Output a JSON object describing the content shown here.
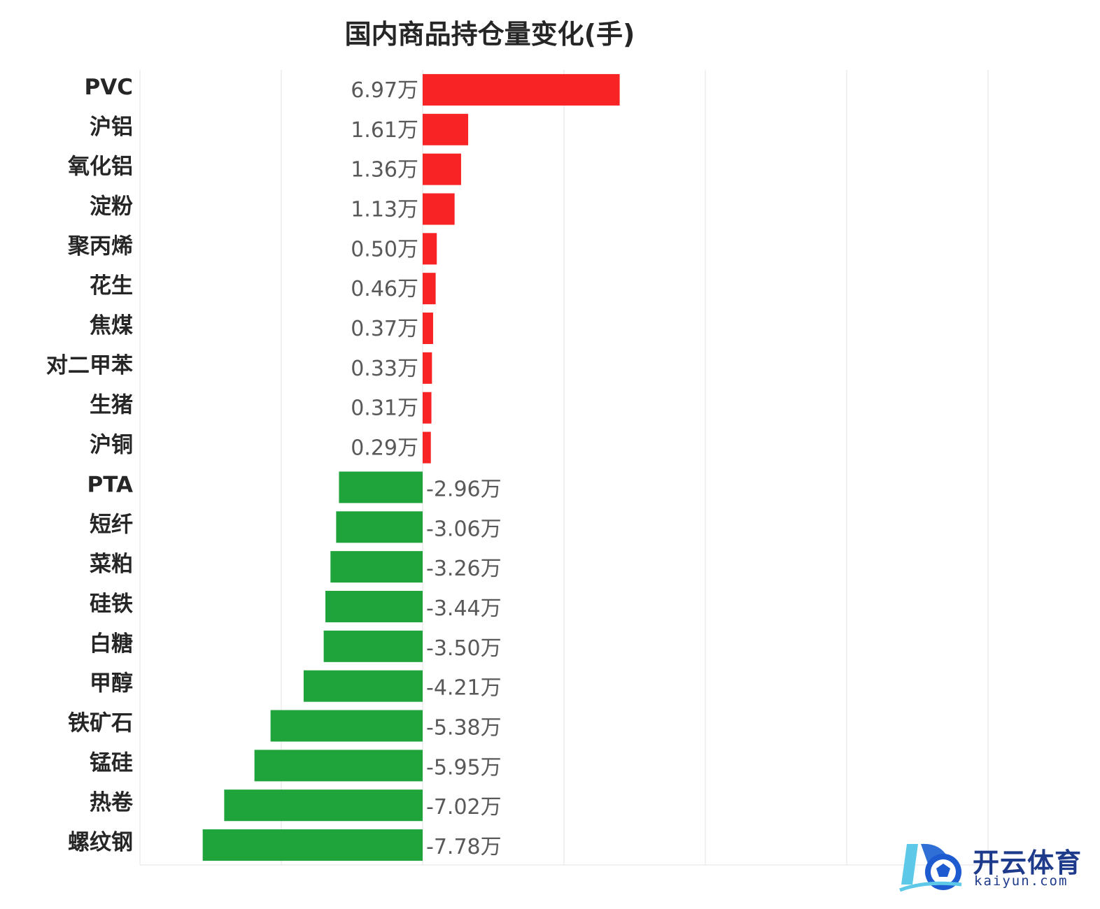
{
  "chart_data": {
    "type": "bar",
    "orientation": "horizontal",
    "title": "国内商品持仓量变化(手)",
    "xlabel": "",
    "ylabel": "",
    "unit": "万",
    "xlim": [
      -10,
      20
    ],
    "grid": true,
    "legend": "none",
    "colors": {
      "positive": "#f72325",
      "negative": "#1fa33b"
    },
    "categories": [
      "PVC",
      "沪铝",
      "氧化铝",
      "淀粉",
      "聚丙烯",
      "花生",
      "焦煤",
      "对二甲苯",
      "生猪",
      "沪铜",
      "PTA",
      "短纤",
      "菜粕",
      "硅铁",
      "白糖",
      "甲醇",
      "铁矿石",
      "锰硅",
      "热卷",
      "螺纹钢"
    ],
    "values": [
      6.97,
      1.61,
      1.36,
      1.13,
      0.5,
      0.46,
      0.37,
      0.33,
      0.31,
      0.29,
      -2.96,
      -3.06,
      -3.26,
      -3.44,
      -3.5,
      -4.21,
      -5.38,
      -5.95,
      -7.02,
      -7.78
    ],
    "data_labels": [
      "6.97万",
      "1.61万",
      "1.36万",
      "1.13万",
      "0.50万",
      "0.46万",
      "0.37万",
      "0.33万",
      "0.31万",
      "0.29万",
      "-2.96万",
      "-3.06万",
      "-3.26万",
      "-3.44万",
      "-3.50万",
      "-4.21万",
      "-5.38万",
      "-5.95万",
      "-7.02万",
      "-7.78万"
    ]
  },
  "watermark": {
    "brand_cn": "开云体育",
    "brand_en": "kaiyun.com"
  }
}
